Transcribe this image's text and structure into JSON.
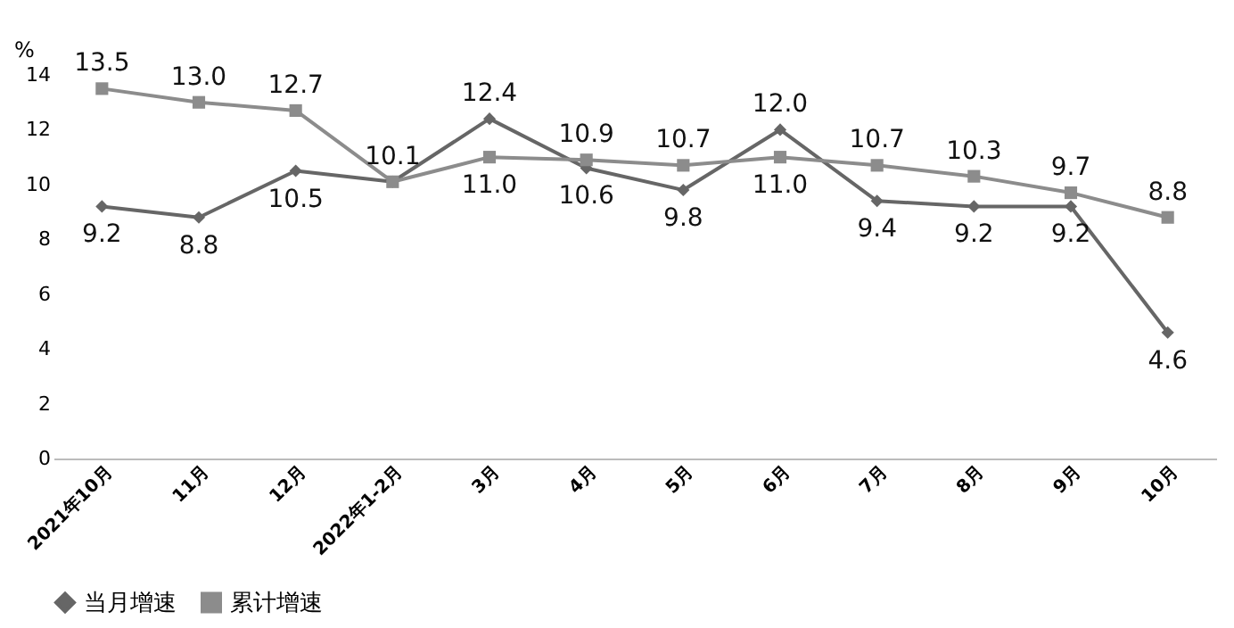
{
  "chart_data": {
    "type": "line",
    "ylabel": "%",
    "categories": [
      "2021年10月",
      "11月",
      "12月",
      "2022年1-2月",
      "3月",
      "4月",
      "5月",
      "6月",
      "7月",
      "8月",
      "9月",
      "10月"
    ],
    "series": [
      {
        "name": "当月增速",
        "color": "#666666",
        "marker": "diamond",
        "values": [
          9.2,
          8.8,
          10.5,
          10.1,
          12.4,
          10.6,
          9.8,
          12.0,
          9.4,
          9.2,
          9.2,
          4.6
        ],
        "value_labels": [
          "9.2",
          "8.8",
          "10.5",
          null,
          "12.4",
          "10.6",
          "9.8",
          "12.0",
          "9.4",
          "9.2",
          "9.2",
          "4.6"
        ]
      },
      {
        "name": "累计增速",
        "color": "#8c8c8c",
        "marker": "square",
        "values": [
          13.5,
          13.0,
          12.7,
          10.1,
          11.0,
          10.9,
          10.7,
          11.0,
          10.7,
          10.3,
          9.7,
          8.8
        ],
        "value_labels": [
          "13.5",
          "13.0",
          "12.7",
          "10.1",
          "11.0",
          "10.9",
          "10.7",
          "11.0",
          "10.7",
          "10.3",
          "9.7",
          "8.8"
        ]
      }
    ],
    "ylim": [
      0,
      14
    ],
    "yticks": [
      0,
      2,
      4,
      6,
      8,
      10,
      12,
      14
    ],
    "grid": false,
    "legend": "bottom",
    "line_style": "solid"
  }
}
